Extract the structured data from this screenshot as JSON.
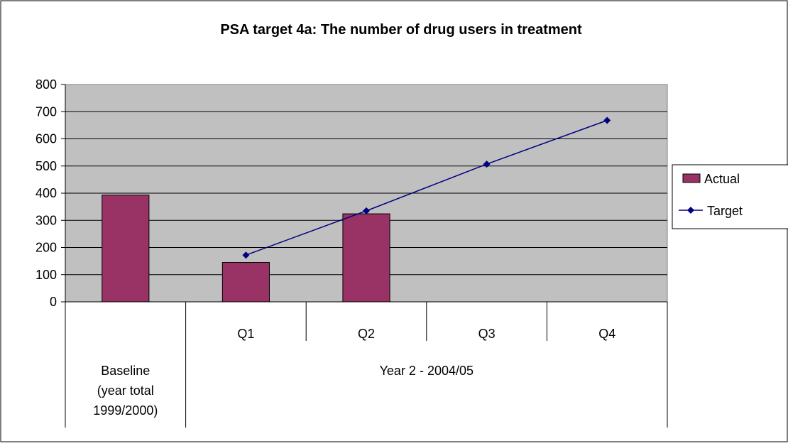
{
  "chart_data": {
    "type": "bar",
    "title": "PSA target 4a: The number of drug users in treatment",
    "categories": [
      "Baseline",
      "Q1",
      "Q2",
      "Q3",
      "Q4"
    ],
    "category_groups": [
      {
        "label_lines": [
          "Baseline",
          "(year total",
          "1999/2000)"
        ],
        "categories": [
          "Baseline"
        ]
      },
      {
        "label_lines": [
          "Year 2 - 2004/05"
        ],
        "categories": [
          "Q1",
          "Q2",
          "Q3",
          "Q4"
        ]
      }
    ],
    "series": [
      {
        "name": "Actual",
        "kind": "bar",
        "color": "#993366",
        "values": [
          393,
          145,
          324,
          null,
          null
        ]
      },
      {
        "name": "Target",
        "kind": "line",
        "marker": "diamond",
        "color": "#000080",
        "values": [
          null,
          172,
          335,
          507,
          668
        ]
      }
    ],
    "ylim": [
      0,
      800
    ],
    "yticks": [
      0,
      100,
      200,
      300,
      400,
      500,
      600,
      700,
      800
    ],
    "grid": true,
    "plot_background": "#c0c0c0",
    "legend_position": "right"
  }
}
